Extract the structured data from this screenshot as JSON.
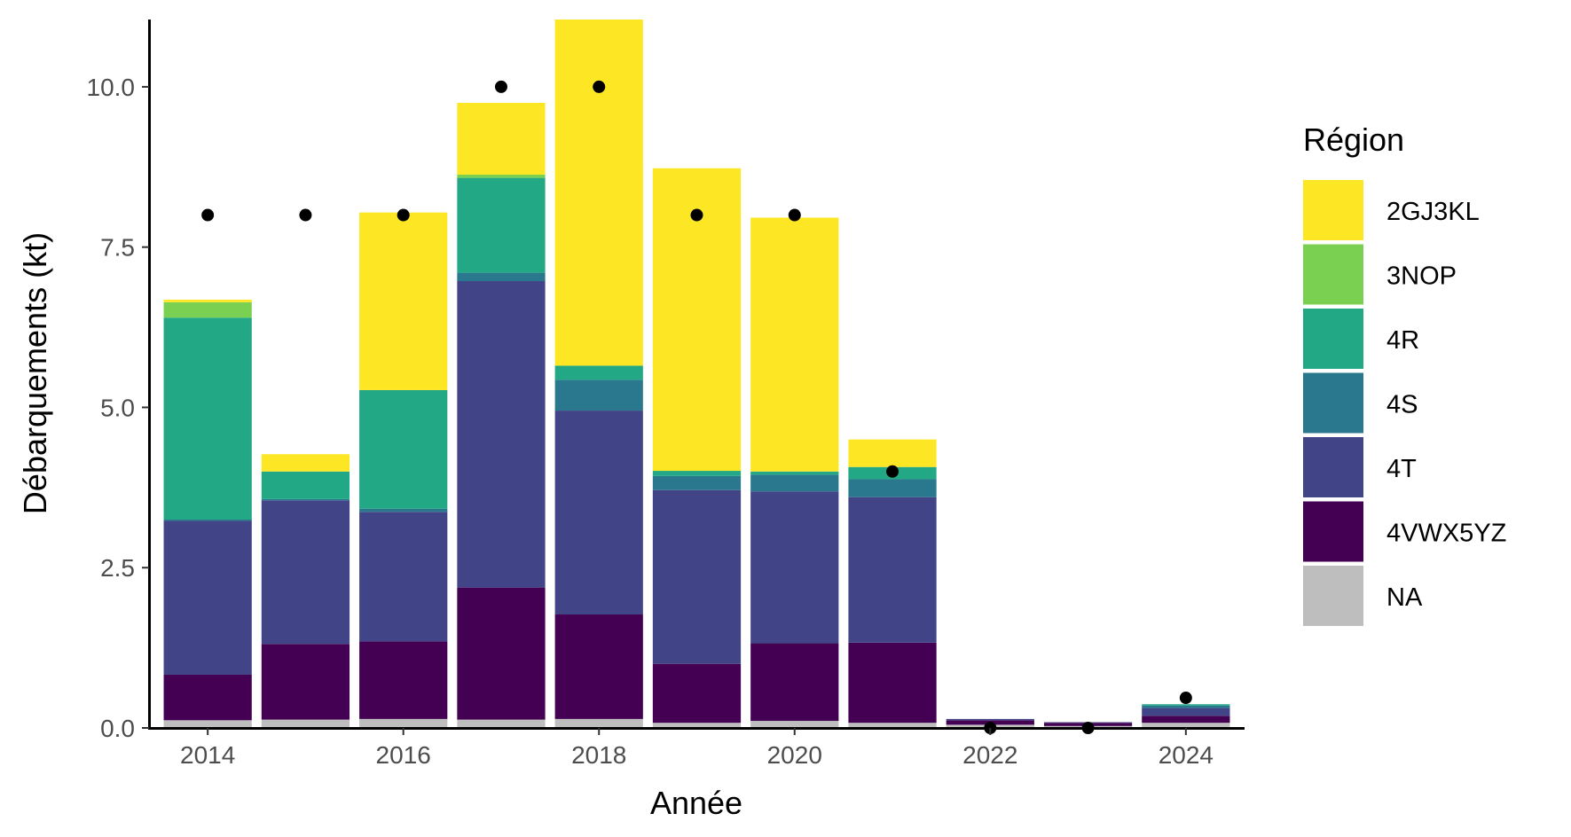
{
  "chart_data": {
    "type": "bar",
    "stacked": true,
    "xlabel": "Année",
    "ylabel": "Débarquements (kt)",
    "x": [
      2014,
      2015,
      2016,
      2017,
      2018,
      2019,
      2020,
      2021,
      2022,
      2023,
      2024
    ],
    "x_ticks": [
      "2014",
      "2016",
      "2018",
      "2020",
      "2022",
      "2024"
    ],
    "x_tick_values": [
      2014,
      2016,
      2018,
      2020,
      2022,
      2024
    ],
    "ylim": [
      0,
      11.05
    ],
    "y_ticks": [
      "0.0",
      "2.5",
      "5.0",
      "7.5",
      "10.0"
    ],
    "y_tick_values": [
      0,
      2.5,
      5,
      7.5,
      10
    ],
    "legend": {
      "title": "Région",
      "position": "right"
    },
    "series": [
      {
        "name": "NA",
        "color": "#BEBEBE",
        "values": [
          0.12,
          0.13,
          0.14,
          0.13,
          0.14,
          0.08,
          0.11,
          0.08,
          0.05,
          0.03,
          0.08
        ]
      },
      {
        "name": "4VWX5YZ",
        "color": "#440154",
        "values": [
          0.71,
          1.18,
          1.21,
          2.06,
          1.63,
          0.92,
          1.21,
          1.25,
          0.07,
          0.05,
          0.11
        ]
      },
      {
        "name": "4T",
        "color": "#414487",
        "values": [
          2.4,
          2.24,
          2.02,
          4.78,
          3.18,
          2.71,
          2.37,
          2.27,
          0.02,
          0.01,
          0.12
        ]
      },
      {
        "name": "4S",
        "color": "#2A788E",
        "values": [
          0.02,
          0.02,
          0.05,
          0.13,
          0.48,
          0.22,
          0.26,
          0.28,
          0.0,
          0.0,
          0.04
        ]
      },
      {
        "name": "4R",
        "color": "#22A884",
        "values": [
          3.15,
          0.43,
          1.85,
          1.48,
          0.22,
          0.08,
          0.05,
          0.19,
          0.0,
          0.0,
          0.02
        ]
      },
      {
        "name": "3NOP",
        "color": "#7AD151",
        "values": [
          0.24,
          0.0,
          0.0,
          0.05,
          0.0,
          0.0,
          0.0,
          0.0,
          0.0,
          0.0,
          0.0
        ]
      },
      {
        "name": "2GJ3KL",
        "color": "#FDE725",
        "values": [
          0.04,
          0.27,
          2.77,
          1.12,
          5.4,
          4.72,
          3.96,
          0.43,
          0.0,
          0.0,
          0.0
        ]
      }
    ],
    "points": {
      "color": "#000000",
      "x": [
        2014,
        2015,
        2016,
        2017,
        2018,
        2019,
        2020,
        2021,
        2022,
        2023,
        2024
      ],
      "y": [
        8,
        8,
        8,
        10,
        10,
        8,
        8,
        4,
        0,
        0,
        0.47
      ]
    },
    "legend_order": [
      "2GJ3KL",
      "3NOP",
      "4R",
      "4S",
      "4T",
      "4VWX5YZ",
      "NA"
    ]
  }
}
